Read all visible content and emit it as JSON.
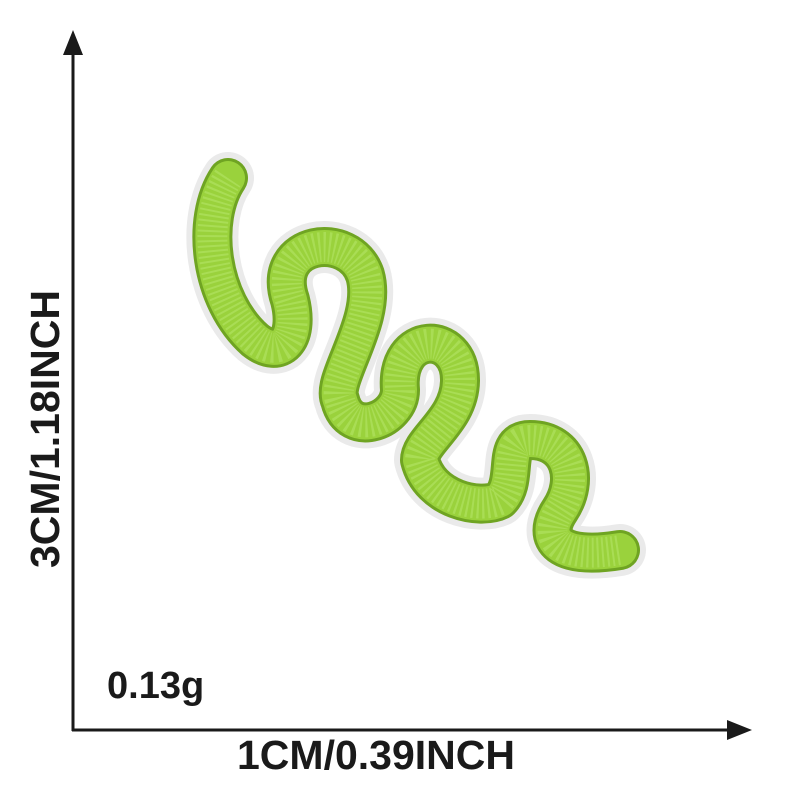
{
  "product": {
    "name": "embroidered-loop-patch-icon",
    "thread_color": "#9ad23c",
    "thread_shadow_color": "#6fa422",
    "border_color": "#eaeaea"
  },
  "dimensions": {
    "height_label": "3CM/1.18INCH",
    "width_label": "1CM/0.39INCH",
    "weight_label": "0.13g"
  },
  "colors": {
    "background": "#ffffff",
    "axis": "#1a1a1a",
    "text": "#1a1a1a"
  }
}
